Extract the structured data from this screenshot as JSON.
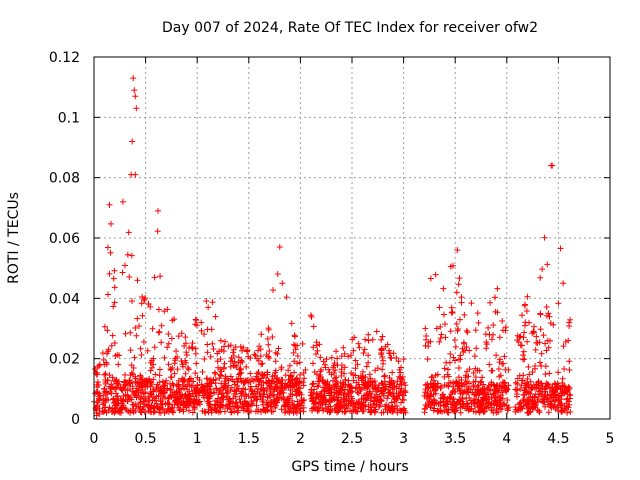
{
  "chart_data": {
    "type": "scatter",
    "title": "Day 007 of 2024, Rate Of TEC Index for receiver ofw2",
    "xlabel": "GPS time / hours",
    "ylabel": "ROTI / TECUs",
    "xlim": [
      0,
      5
    ],
    "ylim": [
      0,
      0.12
    ],
    "x_ticks": [
      "0",
      "0.5",
      "1",
      "1.5",
      "2",
      "2.5",
      "3",
      "3.5",
      "4",
      "4.5",
      "5"
    ],
    "y_ticks": [
      "0",
      "0.02",
      "0.04",
      "0.06",
      "0.08",
      "0.1",
      "0.12"
    ],
    "grid": true,
    "marker": "+",
    "marker_color": "#ff0000",
    "series": [
      {
        "name": "ROTI",
        "segments": [
          {
            "x_start": 0.0,
            "x_end": 0.06,
            "baseline": [
              0.001,
              0.012
            ],
            "envelope": [
              [
                0.0,
                0.02
              ],
              [
                0.06,
                0.018
              ]
            ]
          },
          {
            "x_start": 0.08,
            "x_end": 2.05,
            "baseline": [
              0.002,
              0.013
            ],
            "envelope": [
              [
                0.08,
                0.02
              ],
              [
                0.15,
                0.07
              ],
              [
                0.25,
                0.05
              ],
              [
                0.3,
                0.07
              ],
              [
                0.38,
                0.06
              ],
              [
                0.45,
                0.045
              ],
              [
                0.55,
                0.04
              ],
              [
                0.62,
                0.068
              ],
              [
                0.7,
                0.045
              ],
              [
                0.8,
                0.03
              ],
              [
                0.95,
                0.032
              ],
              [
                1.05,
                0.035
              ],
              [
                1.12,
                0.05
              ],
              [
                1.2,
                0.028
              ],
              [
                1.35,
                0.026
              ],
              [
                1.5,
                0.024
              ],
              [
                1.65,
                0.03
              ],
              [
                1.8,
                0.055
              ],
              [
                1.88,
                0.04
              ],
              [
                2.0,
                0.03
              ],
              [
                2.05,
                0.02
              ]
            ]
          },
          {
            "x_start": 2.1,
            "x_end": 3.02,
            "baseline": [
              0.002,
              0.012
            ],
            "envelope": [
              [
                2.1,
                0.035
              ],
              [
                2.25,
                0.022
              ],
              [
                2.4,
                0.024
              ],
              [
                2.5,
                0.028
              ],
              [
                2.6,
                0.026
              ],
              [
                2.75,
                0.033
              ],
              [
                2.9,
                0.022
              ],
              [
                3.02,
                0.02
              ]
            ]
          },
          {
            "x_start": 3.2,
            "x_end": 4.02,
            "baseline": [
              0.002,
              0.012
            ],
            "envelope": [
              [
                3.2,
                0.03
              ],
              [
                3.28,
                0.053
              ],
              [
                3.4,
                0.05
              ],
              [
                3.52,
                0.056
              ],
              [
                3.6,
                0.04
              ],
              [
                3.7,
                0.044
              ],
              [
                3.8,
                0.035
              ],
              [
                3.9,
                0.045
              ],
              [
                4.02,
                0.03
              ]
            ]
          },
          {
            "x_start": 4.08,
            "x_end": 4.62,
            "baseline": [
              0.002,
              0.012
            ],
            "envelope": [
              [
                4.08,
                0.025
              ],
              [
                4.18,
                0.04
              ],
              [
                4.3,
                0.05
              ],
              [
                4.38,
                0.066
              ],
              [
                4.45,
                0.05
              ],
              [
                4.55,
                0.067
              ],
              [
                4.62,
                0.03
              ]
            ]
          }
        ],
        "outliers": [
          [
            0.38,
            0.113
          ],
          [
            0.39,
            0.109
          ],
          [
            0.4,
            0.107
          ],
          [
            0.41,
            0.103
          ],
          [
            0.37,
            0.092
          ],
          [
            0.36,
            0.081
          ],
          [
            0.4,
            0.081
          ],
          [
            0.28,
            0.072
          ],
          [
            0.15,
            0.071
          ],
          [
            4.43,
            0.084
          ],
          [
            4.44,
            0.084
          ],
          [
            0.62,
            0.069
          ],
          [
            1.8,
            0.057
          ],
          [
            3.52,
            0.056
          ]
        ]
      }
    ]
  }
}
